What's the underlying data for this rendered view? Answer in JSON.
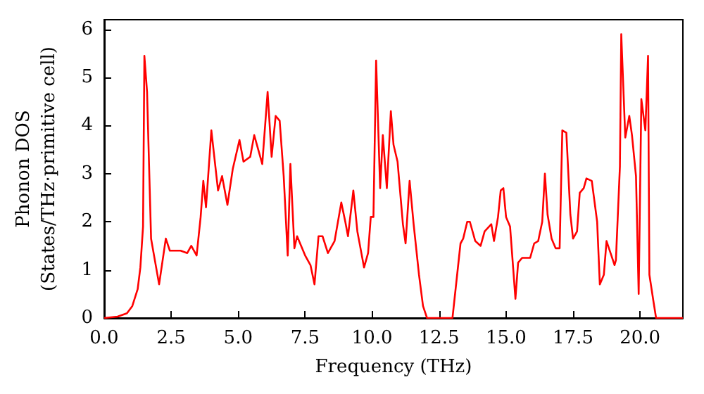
{
  "chart_data": {
    "type": "line",
    "xlabel": "Frequency (THz)",
    "ylabel": "Phonon DOS\n(States/THz·primitive cell)",
    "xlim": [
      0,
      21.6
    ],
    "ylim": [
      0,
      6.2
    ],
    "xticks": [
      {
        "value": 0,
        "label": "0.0"
      },
      {
        "value": 2.5,
        "label": "2.5"
      },
      {
        "value": 5,
        "label": "5.0"
      },
      {
        "value": 7.5,
        "label": "7.5"
      },
      {
        "value": 10,
        "label": "10.0"
      },
      {
        "value": 12.5,
        "label": "12.5"
      },
      {
        "value": 15,
        "label": "15.0"
      },
      {
        "value": 17.5,
        "label": "17.5"
      },
      {
        "value": 20,
        "label": "20.0"
      }
    ],
    "yticks": [
      0,
      1,
      2,
      3,
      4,
      5,
      6
    ],
    "grid": false,
    "marker": "none",
    "line_style": "solid",
    "series": [
      {
        "color": "#ff0000",
        "x": [
          0,
          0.5,
          0.85,
          1.05,
          1.25,
          1.35,
          1.45,
          1.5,
          1.6,
          1.75,
          2.05,
          2.3,
          2.45,
          2.6,
          2.85,
          3.1,
          3.25,
          3.45,
          3.6,
          3.7,
          3.8,
          4.0,
          4.25,
          4.4,
          4.6,
          4.8,
          5.05,
          5.2,
          5.45,
          5.6,
          5.9,
          6.1,
          6.25,
          6.4,
          6.55,
          6.7,
          6.85,
          6.95,
          7.1,
          7.2,
          7.5,
          7.7,
          7.85,
          8.0,
          8.15,
          8.35,
          8.6,
          8.85,
          9.0,
          9.1,
          9.3,
          9.45,
          9.7,
          9.85,
          9.95,
          10.05,
          10.15,
          10.3,
          10.4,
          10.55,
          10.7,
          10.8,
          10.95,
          11.15,
          11.25,
          11.4,
          11.55,
          11.75,
          11.9,
          12.05,
          13.0,
          13.3,
          13.4,
          13.55,
          13.65,
          13.85,
          14.05,
          14.2,
          14.45,
          14.55,
          14.7,
          14.8,
          14.9,
          15.0,
          15.15,
          15.35,
          15.45,
          15.6,
          15.9,
          16.05,
          16.2,
          16.35,
          16.45,
          16.55,
          16.7,
          16.85,
          17.0,
          17.1,
          17.25,
          17.4,
          17.5,
          17.65,
          17.75,
          17.9,
          18.0,
          18.2,
          18.4,
          18.5,
          18.65,
          18.75,
          18.9,
          19.05,
          19.1,
          19.25,
          19.3,
          19.45,
          19.6,
          19.7,
          19.85,
          19.95,
          20.05,
          20.2,
          20.3,
          20.35,
          20.5,
          20.6,
          21.6
        ],
        "values": [
          0,
          0.03,
          0.1,
          0.25,
          0.6,
          1.05,
          1.9,
          5.45,
          4.7,
          1.65,
          0.7,
          1.65,
          1.4,
          1.4,
          1.4,
          1.35,
          1.5,
          1.3,
          2.1,
          2.85,
          2.3,
          3.9,
          2.65,
          2.95,
          2.35,
          3.1,
          3.7,
          3.25,
          3.35,
          3.8,
          3.2,
          4.7,
          3.35,
          4.2,
          4.1,
          2.95,
          1.3,
          3.2,
          1.45,
          1.7,
          1.3,
          1.1,
          0.7,
          1.7,
          1.7,
          1.35,
          1.6,
          2.4,
          2.0,
          1.7,
          2.65,
          1.8,
          1.05,
          1.35,
          2.1,
          2.1,
          5.35,
          2.7,
          3.8,
          2.7,
          4.3,
          3.6,
          3.25,
          1.95,
          1.55,
          2.85,
          1.95,
          0.9,
          0.25,
          0,
          0,
          1.55,
          1.65,
          2.0,
          2.0,
          1.6,
          1.5,
          1.8,
          1.95,
          1.6,
          2.1,
          2.65,
          2.7,
          2.1,
          1.9,
          0.4,
          1.15,
          1.25,
          1.25,
          1.55,
          1.6,
          2.0,
          3.0,
          2.15,
          1.65,
          1.45,
          1.45,
          3.9,
          3.85,
          2.15,
          1.65,
          1.8,
          2.6,
          2.7,
          2.9,
          2.85,
          2.0,
          0.7,
          0.9,
          1.6,
          1.35,
          1.1,
          1.2,
          3.15,
          5.9,
          3.75,
          4.2,
          3.8,
          2.95,
          0.5,
          4.55,
          3.9,
          5.45,
          0.9,
          0.35,
          0,
          0
        ]
      }
    ]
  }
}
